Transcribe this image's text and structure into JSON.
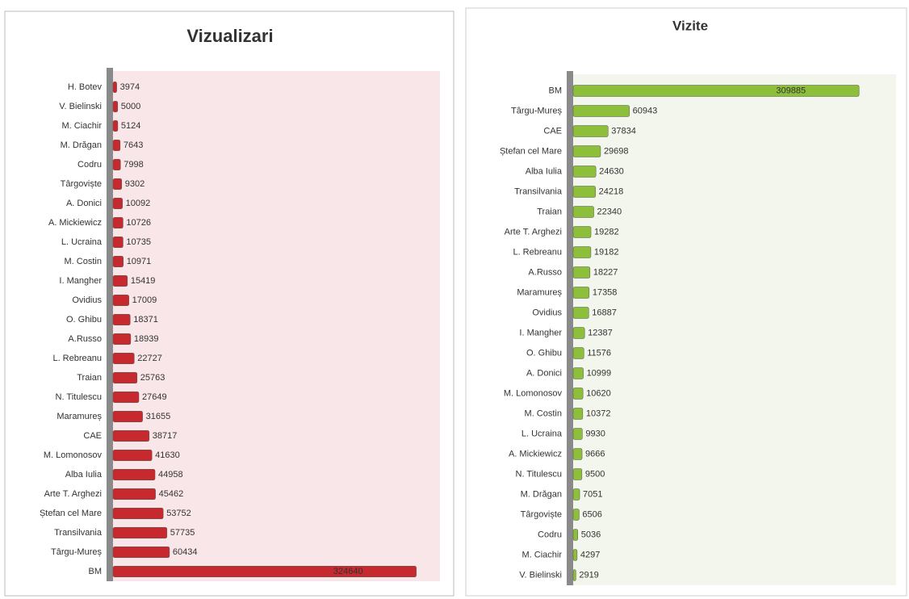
{
  "chart_data": [
    {
      "type": "bar",
      "orientation": "horizontal",
      "title": "Vizualizari",
      "color": "#c62a2f",
      "background": "#f8e6e8",
      "categories": [
        "H. Botev",
        "V. Bielinski",
        "M. Ciachir",
        "M. Drăgan",
        "Codru",
        "Târgoviște",
        "A. Donici",
        "A. Mickiewicz",
        "L. Ucraina",
        "M. Costin",
        "I. Mangher",
        "Ovidius",
        "O. Ghibu",
        "A.Russo",
        "L. Rebreanu",
        "Traian",
        "N. Titulescu",
        "Maramureș",
        "CAE",
        "M. Lomonosov",
        "Alba Iulia",
        "Arte T. Arghezi",
        "Ștefan cel Mare",
        "Transilvania",
        "Târgu-Mureș",
        "BM"
      ],
      "values": [
        3974,
        5000,
        5124,
        7643,
        7998,
        9302,
        10092,
        10726,
        10735,
        10971,
        15419,
        17009,
        18371,
        18939,
        22727,
        25763,
        27649,
        31655,
        38717,
        41630,
        44958,
        45462,
        53752,
        57735,
        60434,
        324640
      ],
      "xlim": [
        0,
        350000
      ]
    },
    {
      "type": "bar",
      "orientation": "horizontal",
      "title": "Vizite",
      "color": "#8dbf3a",
      "background": "#f3f6ec",
      "categories": [
        "BM",
        "Târgu-Mureș",
        "CAE",
        "Ștefan cel Mare",
        "Alba Iulia",
        "Transilvania",
        "Traian",
        "Arte T. Arghezi",
        "L. Rebreanu",
        "A.Russo",
        "Maramureș",
        "Ovidius",
        "I. Mangher",
        "O. Ghibu",
        "A. Donici",
        "M. Lomonosov",
        "M. Costin",
        "L. Ucraina",
        "A. Mickiewicz",
        "N. Titulescu",
        "M. Drăgan",
        "Târgoviște",
        "Codru",
        "M. Ciachir",
        "V. Bielinski"
      ],
      "values": [
        309885,
        60943,
        37834,
        29698,
        24630,
        24218,
        22340,
        19282,
        19182,
        18227,
        17358,
        16887,
        12387,
        11576,
        10999,
        10620,
        10372,
        9930,
        9666,
        9500,
        7051,
        6506,
        5036,
        4297,
        2919
      ],
      "xlim": [
        0,
        350000
      ]
    }
  ]
}
